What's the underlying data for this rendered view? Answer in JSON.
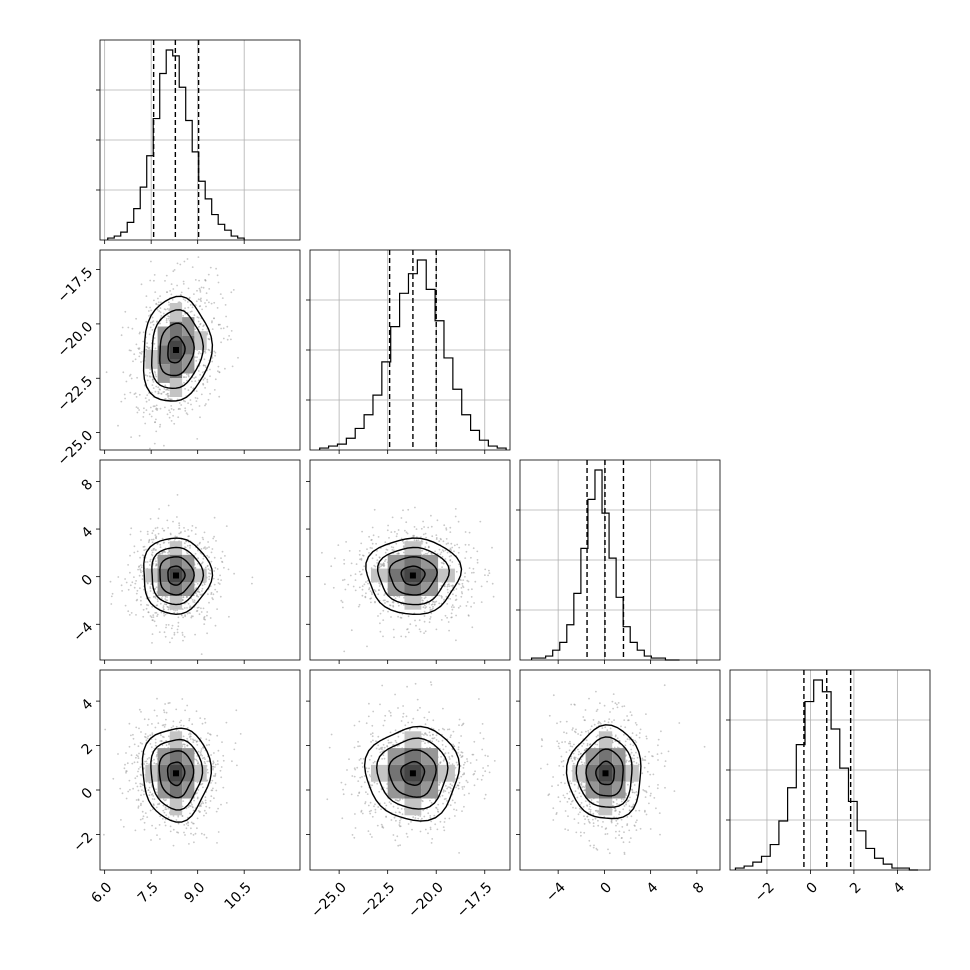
{
  "chart_data": {
    "type": "corner",
    "grid": true,
    "title": "",
    "parameters": [
      {
        "xlim": [
          5.85,
          12.3
        ],
        "ylim": [
          -25.8,
          -16.6
        ],
        "ticks": [
          6.0,
          7.5,
          9.0,
          10.5
        ],
        "tick_labels": [
          "6.0",
          "7.5",
          "9.0",
          "10.5"
        ],
        "y_ticks": [
          -25.0,
          -22.5,
          -20.0,
          -17.5
        ],
        "y_tick_labels": [
          "−25.0",
          "−22.5",
          "−20.0",
          "−17.5"
        ],
        "quantiles": [
          7.58,
          8.28,
          9.03
        ],
        "mean": 8.3,
        "sd": 0.55
      },
      {
        "xlim": [
          -26.5,
          -16.2
        ],
        "ylim": [
          -25.8,
          -16.6
        ],
        "ticks": [
          -25.0,
          -22.5,
          -20.0,
          -17.5
        ],
        "tick_labels": [
          "−25.0",
          "−22.5",
          "−20.0",
          "−17.5"
        ],
        "quantiles": [
          -22.4,
          -21.2,
          -20.0
        ],
        "mean": -21.2,
        "sd": 1.2
      },
      {
        "xlim": [
          -7.3,
          10.0
        ],
        "ylim": [
          -7.0,
          9.8
        ],
        "ticks": [
          -4,
          0,
          4,
          8
        ],
        "tick_labels": [
          "−4",
          "0",
          "4",
          "8"
        ],
        "quantiles": [
          -1.5,
          0.05,
          1.65
        ],
        "mean": 0.1,
        "sd": 1.6
      },
      {
        "xlim": [
          -3.7,
          5.5
        ],
        "ylim": [
          -3.6,
          5.4
        ],
        "ticks": [
          -2,
          0,
          2,
          4
        ],
        "tick_labels": [
          "−2",
          "0",
          "2",
          "4"
        ],
        "quantiles": [
          -0.3,
          0.75,
          1.85
        ],
        "mean": 0.75,
        "sd": 1.05
      }
    ],
    "histograms": [
      [
        1,
        2,
        4,
        9,
        16,
        27,
        43,
        62,
        85,
        97,
        94,
        78,
        61,
        45,
        30,
        21,
        13,
        8,
        5,
        2,
        1
      ],
      [
        1,
        2,
        3,
        6,
        11,
        18,
        28,
        45,
        63,
        80,
        90,
        97,
        82,
        66,
        47,
        31,
        18,
        10,
        5,
        2,
        1
      ],
      [
        1,
        1,
        2,
        5,
        9,
        18,
        34,
        57,
        82,
        97,
        75,
        52,
        32,
        17,
        9,
        5,
        2,
        1,
        1,
        0,
        0
      ],
      [
        1,
        2,
        4,
        7,
        13,
        25,
        42,
        64,
        86,
        97,
        91,
        72,
        52,
        35,
        20,
        11,
        6,
        3,
        1,
        1,
        0
      ]
    ]
  }
}
